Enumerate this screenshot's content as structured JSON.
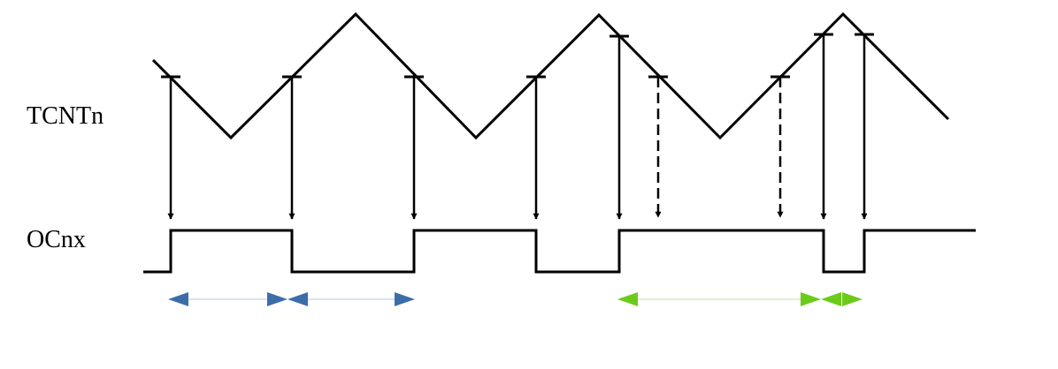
{
  "labels": {
    "counter": "TCNTn",
    "output": "OCnx"
  },
  "colors": {
    "waveform": "#000000",
    "period_a": "#3b6ea8",
    "period_b": "#6ccb1a",
    "period_line": "#c9dcea"
  }
}
